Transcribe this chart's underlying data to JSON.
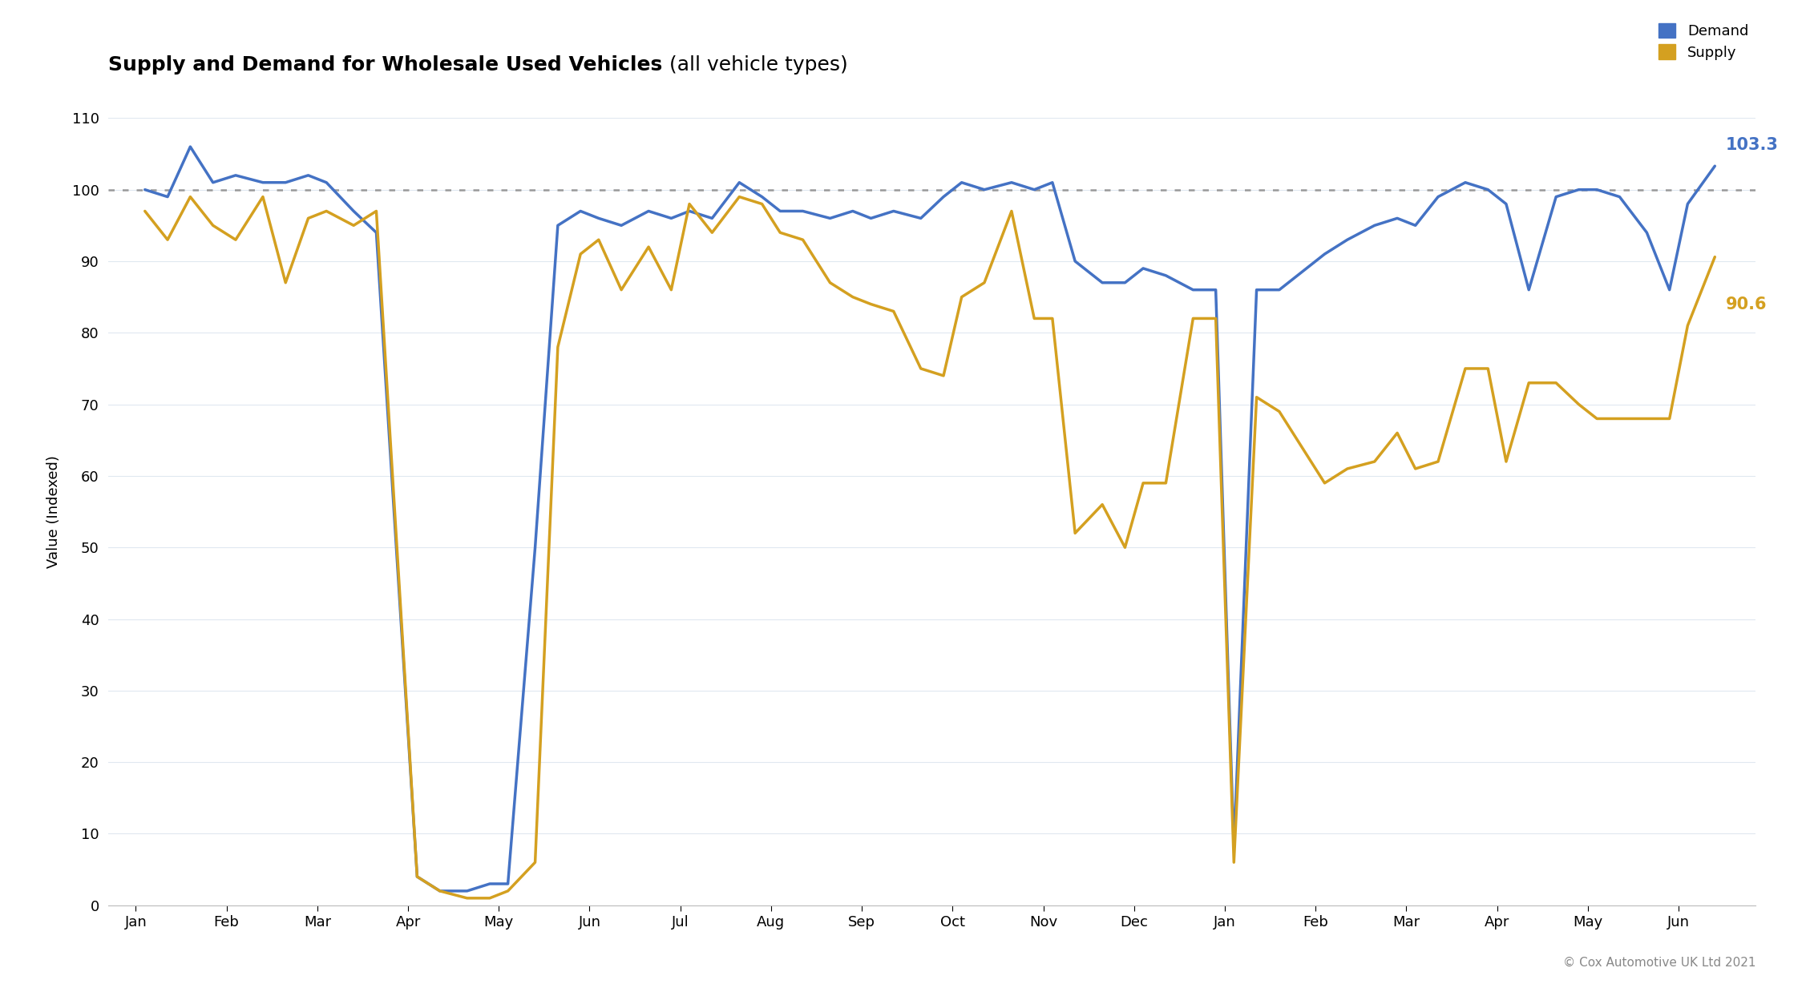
{
  "title_bold": "Supply and Demand for Wholesale Used Vehicles",
  "title_normal": " (all vehicle types)",
  "ylabel": "Value (Indexed)",
  "demand_color": "#4472C4",
  "supply_color": "#D4A020",
  "background_color": "#FFFFFF",
  "hline_value": 100,
  "ylim": [
    0,
    110
  ],
  "yticks": [
    0,
    10,
    20,
    30,
    40,
    50,
    60,
    70,
    80,
    90,
    100,
    110
  ],
  "end_label_demand": "103.3",
  "end_label_supply": "90.6",
  "copyright": "© Cox Automotive UK Ltd 2021",
  "x_labels": [
    "Jan",
    "Feb",
    "Mar",
    "Apr",
    "May",
    "Jun",
    "Jul",
    "Aug",
    "Sep",
    "Oct",
    "Nov",
    "Dec",
    "Jan",
    "Feb",
    "Mar",
    "Apr",
    "May",
    "Jun"
  ],
  "demand_x": [
    0.1,
    0.35,
    0.6,
    0.85,
    1.1,
    1.4,
    1.65,
    1.9,
    2.1,
    2.4,
    2.65,
    3.1,
    3.35,
    3.65,
    3.9,
    4.1,
    4.4,
    4.65,
    4.9,
    5.1,
    5.35,
    5.65,
    5.9,
    6.1,
    6.35,
    6.65,
    6.9,
    7.1,
    7.35,
    7.65,
    7.9,
    8.1,
    8.35,
    8.65,
    8.9,
    9.1,
    9.35,
    9.65,
    9.9,
    10.1,
    10.35,
    10.65,
    10.9,
    11.1,
    11.35,
    11.65,
    11.9,
    12.1,
    12.35,
    12.6,
    13.1,
    13.35,
    13.65,
    13.9,
    14.1,
    14.35,
    14.65,
    14.9,
    15.1,
    15.35,
    15.65,
    15.9,
    16.1,
    16.35,
    16.65,
    16.9,
    17.1,
    17.4
  ],
  "demand_y": [
    100,
    99,
    106,
    101,
    102,
    101,
    101,
    102,
    101,
    97,
    94,
    4,
    2,
    2,
    3,
    3,
    50,
    95,
    97,
    96,
    95,
    97,
    96,
    97,
    96,
    101,
    99,
    97,
    97,
    96,
    97,
    96,
    97,
    96,
    99,
    101,
    100,
    101,
    100,
    101,
    90,
    87,
    87,
    89,
    88,
    86,
    86,
    8,
    86,
    86,
    91,
    93,
    95,
    96,
    95,
    99,
    101,
    100,
    98,
    86,
    99,
    100,
    100,
    99,
    94,
    86,
    98,
    103.3
  ],
  "supply_x": [
    0.1,
    0.35,
    0.6,
    0.85,
    1.1,
    1.4,
    1.65,
    1.9,
    2.1,
    2.4,
    2.65,
    3.1,
    3.35,
    3.65,
    3.9,
    4.1,
    4.4,
    4.65,
    4.9,
    5.1,
    5.35,
    5.65,
    5.9,
    6.1,
    6.35,
    6.65,
    6.9,
    7.1,
    7.35,
    7.65,
    7.9,
    8.1,
    8.35,
    8.65,
    8.9,
    9.1,
    9.35,
    9.65,
    9.9,
    10.1,
    10.35,
    10.65,
    10.9,
    11.1,
    11.35,
    11.65,
    11.9,
    12.1,
    12.35,
    12.6,
    13.1,
    13.35,
    13.65,
    13.9,
    14.1,
    14.35,
    14.65,
    14.9,
    15.1,
    15.35,
    15.65,
    15.9,
    16.1,
    16.35,
    16.65,
    16.9,
    17.1,
    17.4
  ],
  "supply_y": [
    97,
    93,
    99,
    95,
    93,
    99,
    87,
    96,
    97,
    95,
    97,
    4,
    2,
    1,
    1,
    2,
    6,
    78,
    91,
    93,
    86,
    92,
    86,
    98,
    94,
    99,
    98,
    94,
    93,
    87,
    85,
    84,
    83,
    75,
    74,
    85,
    87,
    97,
    82,
    82,
    52,
    56,
    50,
    59,
    59,
    82,
    82,
    6,
    71,
    69,
    59,
    61,
    62,
    66,
    61,
    62,
    75,
    75,
    62,
    73,
    73,
    70,
    68,
    68,
    68,
    68,
    81,
    90.6
  ]
}
